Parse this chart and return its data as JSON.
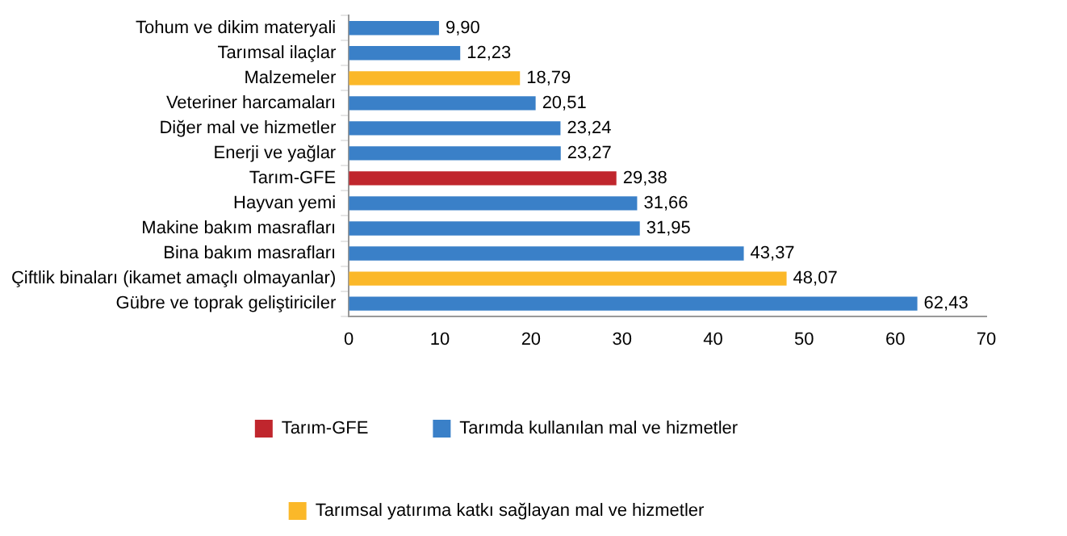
{
  "chart_data": {
    "type": "bar",
    "orientation": "horizontal",
    "categories": [
      "Tohum ve dikim materyali",
      "Tarımsal ilaçlar",
      "Malzemeler",
      "Veteriner harcamaları",
      "Diğer mal ve hizmetler",
      "Enerji ve yağlar",
      "Tarım-GFE",
      "Hayvan yemi",
      "Makine bakım masrafları",
      "Bina bakım masrafları",
      "Çiftlik binaları (ikamet amaçlı olmayanlar)",
      "Gübre ve toprak geliştiriciler"
    ],
    "series": [
      {
        "name": "Tarım-GFE",
        "color": "#c0262d",
        "values": [
          null,
          null,
          null,
          null,
          null,
          null,
          29.38,
          null,
          null,
          null,
          null,
          null
        ],
        "value_labels": [
          null,
          null,
          null,
          null,
          null,
          null,
          "29,38",
          null,
          null,
          null,
          null,
          null
        ]
      },
      {
        "name": "Tarımda kullanılan mal ve hizmetler",
        "color": "#3a80c8",
        "values": [
          9.9,
          12.23,
          null,
          20.51,
          23.24,
          23.27,
          null,
          31.66,
          31.95,
          43.37,
          null,
          62.43
        ],
        "value_labels": [
          "9,90",
          "12,23",
          null,
          "20,51",
          "23,24",
          "23,27",
          null,
          "31,66",
          "31,95",
          "43,37",
          null,
          "62,43"
        ]
      },
      {
        "name": "Tarımsal yatırıma katkı sağlayan mal ve hizmetler",
        "color": "#fbb829",
        "values": [
          null,
          null,
          18.79,
          null,
          null,
          null,
          null,
          null,
          null,
          null,
          48.07,
          null
        ],
        "value_labels": [
          null,
          null,
          "18,79",
          null,
          null,
          null,
          null,
          null,
          null,
          null,
          "48,07",
          null
        ]
      }
    ],
    "xlim": [
      0,
      70
    ],
    "xticks": [
      0,
      10,
      20,
      30,
      40,
      50,
      60,
      70
    ],
    "grid": false,
    "legend": "bottom"
  }
}
